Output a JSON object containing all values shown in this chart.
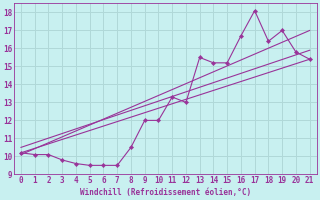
{
  "xlabel": "Windchill (Refroidissement éolien,°C)",
  "bg_color": "#c8f0f0",
  "grid_color": "#b0d8d8",
  "line_color": "#993399",
  "xlim": [
    -0.5,
    21.5
  ],
  "ylim": [
    9,
    18.5
  ],
  "xticks": [
    0,
    1,
    2,
    3,
    4,
    5,
    6,
    7,
    8,
    9,
    10,
    11,
    12,
    13,
    14,
    15,
    16,
    17,
    18,
    19,
    20,
    21
  ],
  "yticks": [
    9,
    10,
    11,
    12,
    13,
    14,
    15,
    16,
    17,
    18
  ],
  "scatter_x": [
    0,
    1,
    2,
    3,
    4,
    5,
    6,
    7,
    8,
    9,
    10,
    11,
    12,
    13,
    14,
    15,
    16,
    17,
    18,
    19,
    20,
    21
  ],
  "scatter_y": [
    10.2,
    10.1,
    10.1,
    9.8,
    9.6,
    9.5,
    9.5,
    9.5,
    10.5,
    12.0,
    12.0,
    13.3,
    13.0,
    15.5,
    15.2,
    15.2,
    16.7,
    18.1,
    16.4,
    17.0,
    15.8,
    15.4
  ],
  "line1_x": [
    0,
    21
  ],
  "line1_y": [
    10.2,
    15.4
  ],
  "line2_x": [
    0,
    21
  ],
  "line2_y": [
    10.5,
    15.9
  ],
  "line3_x": [
    0,
    21
  ],
  "line3_y": [
    10.1,
    17.0
  ],
  "tick_fontsize": 5.5,
  "xlabel_fontsize": 5.5
}
